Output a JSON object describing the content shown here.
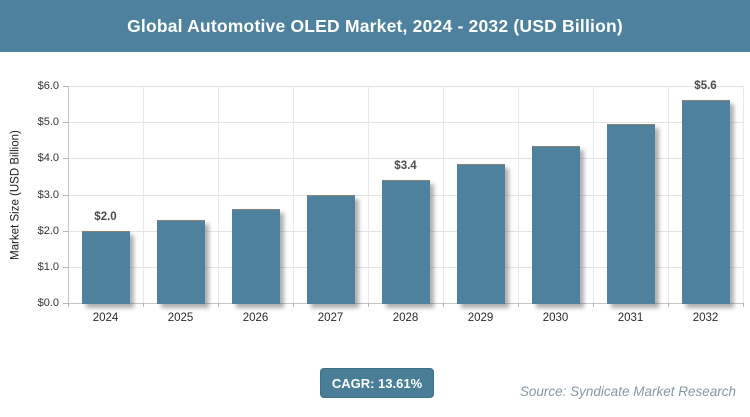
{
  "header": {
    "title": "Global Automotive OLED Market, 2024 - 2032 (USD Billion)",
    "background": "#4d819d",
    "text_color": "#ffffff"
  },
  "chart_data": {
    "type": "bar",
    "title": "Global Automotive OLED Market, 2024 - 2032 (USD Billion)",
    "categories": [
      "2024",
      "2025",
      "2026",
      "2027",
      "2028",
      "2029",
      "2030",
      "2031",
      "2032"
    ],
    "values": [
      2.0,
      2.3,
      2.6,
      3.0,
      3.4,
      3.85,
      4.35,
      4.95,
      5.6
    ],
    "data_labels": [
      "$2.0",
      "",
      "",
      "",
      "$3.4",
      "",
      "",
      "",
      "$5.6"
    ],
    "xlabel": "",
    "ylabel": "Market Size (USD Billion)",
    "ylim": [
      0,
      6
    ],
    "ytick_step": 1,
    "ytick_labels": [
      "$0.0",
      "$1.0",
      "$2.0",
      "$3.0",
      "$4.0",
      "$5.0",
      "$6.0"
    ],
    "grid": true,
    "legend": "none",
    "bar_color": "#4d819d"
  },
  "footer": {
    "cagr_label": "CAGR: 13.61%",
    "source": "Source: Syndicate Market Research",
    "badge_color": "#4a7d96"
  }
}
